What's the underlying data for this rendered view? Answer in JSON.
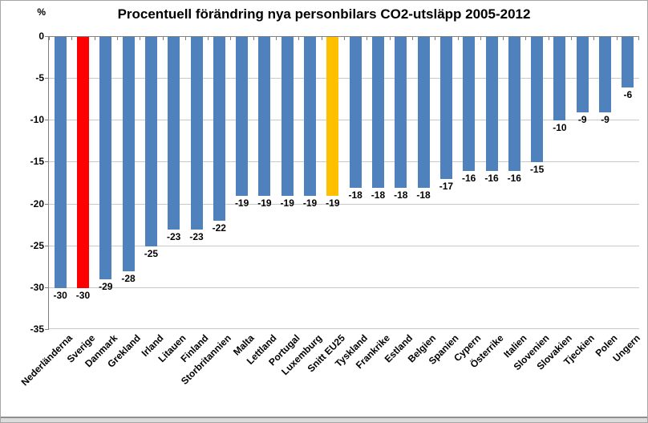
{
  "chart_data": {
    "type": "bar",
    "title": "Procentuell förändring nya personbilars CO2-utsläpp 2005-2012",
    "y_unit_label": "%",
    "xlabel": "",
    "ylabel": "%",
    "categories": [
      "Nederländerna",
      "Sverige",
      "Danmark",
      "Grekland",
      "Irland",
      "Litauen",
      "Finland",
      "Storbritannien",
      "Malta",
      "Lettland",
      "Portugal",
      "Luxemburg",
      "Snitt EU25",
      "Tyskland",
      "Frankrike",
      "Estland",
      "Belgien",
      "Spanien",
      "Cypern",
      "Österrike",
      "Italien",
      "Slovenien",
      "Slovakien",
      "Tjeckien",
      "Polen",
      "Ungern"
    ],
    "values": [
      -30,
      -30,
      -29,
      -28,
      -25,
      -23,
      -23,
      -22,
      -19,
      -19,
      -19,
      -19,
      -19,
      -18,
      -18,
      -18,
      -18,
      -17,
      -16,
      -16,
      -16,
      -15,
      -10,
      -9,
      -9,
      -6
    ],
    "data_labels": [
      "-30",
      "-30",
      "-29",
      "-28",
      "-25",
      "-23",
      "-23",
      "-22",
      "-19",
      "-19",
      "-19",
      "-19",
      "-19",
      "-18",
      "-18",
      "-18",
      "-18",
      "-17",
      "-16",
      "-16",
      "-16",
      "-15",
      "-10",
      "-9",
      "-9",
      "-6"
    ],
    "ylim": [
      -35,
      0
    ],
    "yticks": [
      0,
      -5,
      -10,
      -15,
      -20,
      -25,
      -30,
      -35
    ],
    "ytick_labels": [
      "0",
      "-5",
      "-10",
      "-15",
      "-20",
      "-25",
      "-30",
      "-35"
    ],
    "grid": true,
    "legend": "none",
    "data_label_position": "outside_end",
    "default_bar_color": "#4F81BD",
    "highlight_colors": {
      "Sverige": "#FF0000",
      "Snitt EU25": "#FFC000"
    },
    "gridline_color": "#C8C8C8",
    "axis_color": "#808080",
    "text_color": "#000000",
    "background_color": "#FFFFFF"
  }
}
